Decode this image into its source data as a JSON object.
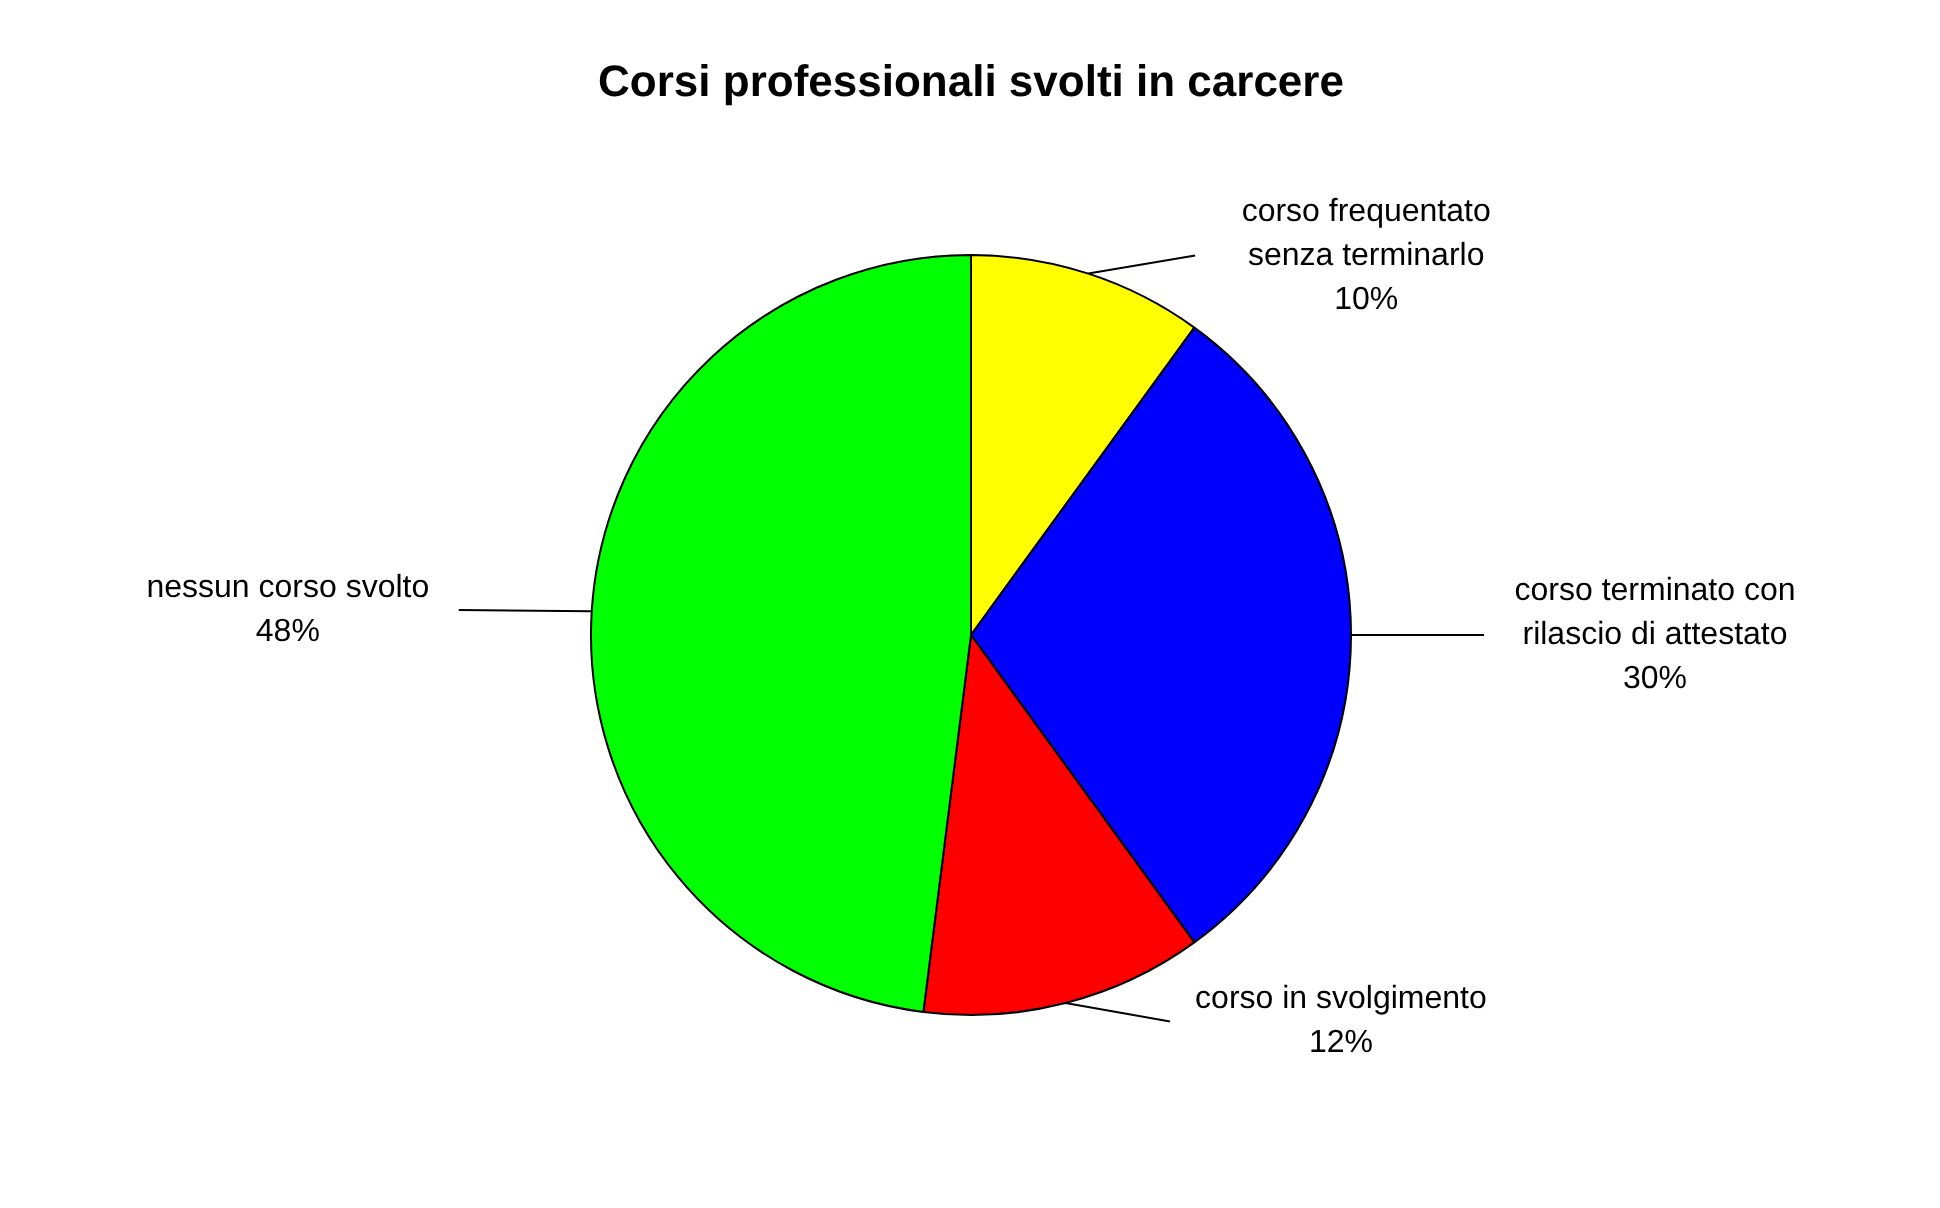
{
  "chart_data": {
    "type": "pie",
    "title": "Corsi professionali svolti in carcere",
    "categories": [
      "corso frequentato\nsenza terminarlo",
      "corso terminato con\nrilascio di attestato",
      "corso in svolgimento",
      "nessun corso svolto"
    ],
    "values": [
      10,
      30,
      12,
      48
    ],
    "value_labels": [
      "10%",
      "30%",
      "12%",
      "48%"
    ],
    "colors": [
      "#ffff00",
      "#0000ff",
      "#ff0000",
      "#00ff00"
    ]
  }
}
